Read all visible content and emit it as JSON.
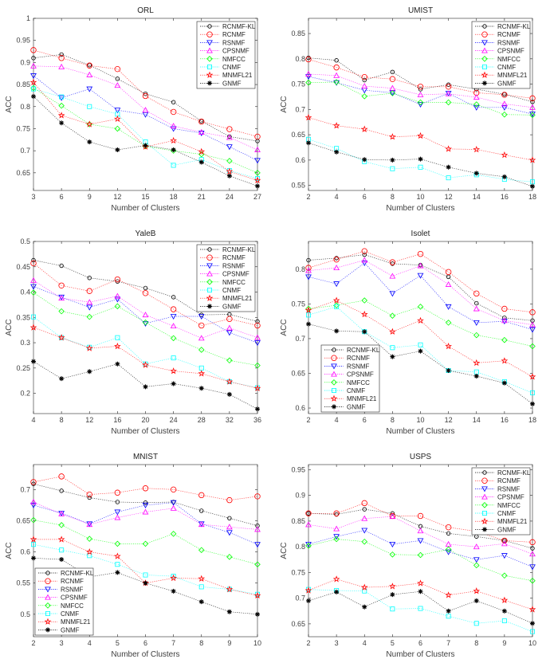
{
  "legend_labels": [
    "RCNMF-KL",
    "RCNMF",
    "RSNMF",
    "CPSNMF",
    "NMFCC",
    "CNMF",
    "MNMFL21",
    "GNMF"
  ],
  "series_styles": [
    {
      "color": "#000000",
      "marker": "small-circle"
    },
    {
      "color": "#ff0000",
      "marker": "circle"
    },
    {
      "color": "#0000ff",
      "marker": "triangle-down"
    },
    {
      "color": "#ff00ff",
      "marker": "triangle-up"
    },
    {
      "color": "#00ff00",
      "marker": "diamond"
    },
    {
      "color": "#00ffff",
      "marker": "square"
    },
    {
      "color": "#ff0000",
      "marker": "pentagram"
    },
    {
      "color": "#000000",
      "marker": "asterisk"
    }
  ],
  "chart_data": [
    {
      "type": "line",
      "title": "ORL",
      "xlabel": "Number of Clusters",
      "ylabel": "ACC",
      "x": [
        3,
        6,
        9,
        12,
        15,
        18,
        21,
        24,
        27
      ],
      "xlim": [
        3,
        27
      ],
      "ylim": [
        0.61,
        1
      ],
      "yticks": [
        "0.65",
        "0.7",
        "0.75",
        "0.8",
        "0.85",
        "0.9",
        "0.95",
        "1"
      ],
      "xticks": [
        "3",
        "6",
        "9",
        "12",
        "15",
        "18",
        "21",
        "24",
        "27"
      ],
      "legend": "top-right",
      "grid": false,
      "series": [
        {
          "name": "RCNMF-KL",
          "values": [
            0.91,
            0.918,
            0.894,
            0.863,
            0.829,
            0.81,
            0.767,
            0.732,
            0.722
          ]
        },
        {
          "name": "RCNMF",
          "values": [
            0.928,
            0.91,
            0.893,
            0.885,
            0.824,
            0.788,
            0.766,
            0.749,
            0.732
          ]
        },
        {
          "name": "RSNMF",
          "values": [
            0.87,
            0.82,
            0.84,
            0.792,
            0.782,
            0.75,
            0.74,
            0.709,
            0.678
          ]
        },
        {
          "name": "CPSNMF",
          "values": [
            0.892,
            0.89,
            0.872,
            0.848,
            0.792,
            0.756,
            0.742,
            0.73,
            0.702
          ]
        },
        {
          "name": "NMFCC",
          "values": [
            0.842,
            0.802,
            0.76,
            0.75,
            0.71,
            0.7,
            0.692,
            0.677,
            0.65
          ]
        },
        {
          "name": "CNMF",
          "values": [
            0.84,
            0.822,
            0.8,
            0.783,
            0.72,
            0.667,
            0.68,
            0.655,
            0.637
          ]
        },
        {
          "name": "MNMFL21",
          "values": [
            0.855,
            0.78,
            0.76,
            0.772,
            0.709,
            0.723,
            0.698,
            0.653,
            0.633
          ]
        },
        {
          "name": "GNMF",
          "values": [
            0.823,
            0.763,
            0.72,
            0.702,
            0.712,
            0.702,
            0.674,
            0.643,
            0.62
          ]
        }
      ]
    },
    {
      "type": "line",
      "title": "UMIST",
      "xlabel": "Number of Clusters",
      "ylabel": "ACC",
      "x": [
        2,
        4,
        6,
        8,
        10,
        12,
        14,
        16,
        18
      ],
      "xlim": [
        2,
        18
      ],
      "ylim": [
        0.54,
        0.88
      ],
      "yticks": [
        "0.55",
        "0.6",
        "0.65",
        "0.7",
        "0.75",
        "0.8",
        "0.85"
      ],
      "xticks": [
        "2",
        "4",
        "6",
        "8",
        "10",
        "12",
        "14",
        "16",
        "18"
      ],
      "legend": "top-right",
      "grid": false,
      "series": [
        {
          "name": "RCNMF-KL",
          "values": [
            0.802,
            0.797,
            0.758,
            0.774,
            0.74,
            0.749,
            0.74,
            0.73,
            0.715
          ]
        },
        {
          "name": "RCNMF",
          "values": [
            0.799,
            0.783,
            0.764,
            0.76,
            0.745,
            0.745,
            0.733,
            0.729,
            0.722
          ]
        },
        {
          "name": "RSNMF",
          "values": [
            0.765,
            0.753,
            0.738,
            0.733,
            0.71,
            0.732,
            0.704,
            0.704,
            0.691
          ]
        },
        {
          "name": "CPSNMF",
          "values": [
            0.77,
            0.767,
            0.746,
            0.742,
            0.729,
            0.731,
            0.724,
            0.711,
            0.704
          ]
        },
        {
          "name": "NMFCC",
          "values": [
            0.753,
            0.754,
            0.726,
            0.732,
            0.714,
            0.714,
            0.71,
            0.69,
            0.689
          ]
        },
        {
          "name": "CNMF",
          "values": [
            0.641,
            0.623,
            0.597,
            0.583,
            0.586,
            0.565,
            0.571,
            0.562,
            0.557
          ]
        },
        {
          "name": "MNMFL21",
          "values": [
            0.684,
            0.668,
            0.661,
            0.646,
            0.648,
            0.622,
            0.621,
            0.61,
            0.6
          ]
        },
        {
          "name": "GNMF",
          "values": [
            0.634,
            0.616,
            0.601,
            0.6,
            0.602,
            0.586,
            0.574,
            0.567,
            0.548
          ]
        }
      ]
    },
    {
      "type": "line",
      "title": "YaleB",
      "xlabel": "Number of Clusters",
      "ylabel": "ACC",
      "x": [
        4,
        8,
        12,
        16,
        20,
        24,
        28,
        32,
        36
      ],
      "xlim": [
        4,
        36
      ],
      "ylim": [
        0.16,
        0.5
      ],
      "yticks": [
        "0.2",
        "0.25",
        "0.3",
        "0.35",
        "0.4",
        "0.45",
        "0.5"
      ],
      "xticks": [
        "4",
        "8",
        "12",
        "16",
        "20",
        "24",
        "28",
        "32",
        "36"
      ],
      "legend": "top-right",
      "grid": false,
      "series": [
        {
          "name": "RCNMF-KL",
          "values": [
            0.463,
            0.452,
            0.428,
            0.421,
            0.408,
            0.39,
            0.355,
            0.356,
            0.342
          ]
        },
        {
          "name": "RCNMF",
          "values": [
            0.457,
            0.413,
            0.402,
            0.425,
            0.398,
            0.366,
            0.334,
            0.347,
            0.334
          ]
        },
        {
          "name": "RSNMF",
          "values": [
            0.411,
            0.39,
            0.37,
            0.386,
            0.338,
            0.352,
            0.352,
            0.32,
            0.3
          ]
        },
        {
          "name": "CPSNMF",
          "values": [
            0.423,
            0.388,
            0.38,
            0.392,
            0.355,
            0.333,
            0.309,
            0.329,
            0.31
          ]
        },
        {
          "name": "NMFCC",
          "values": [
            0.399,
            0.362,
            0.351,
            0.372,
            0.34,
            0.309,
            0.286,
            0.265,
            0.255
          ]
        },
        {
          "name": "CNMF",
          "values": [
            0.351,
            0.31,
            0.291,
            0.31,
            0.258,
            0.27,
            0.25,
            0.223,
            0.211
          ]
        },
        {
          "name": "MNMFL21",
          "values": [
            0.33,
            0.31,
            0.289,
            0.293,
            0.256,
            0.244,
            0.239,
            0.223,
            0.21
          ]
        },
        {
          "name": "GNMF",
          "values": [
            0.263,
            0.229,
            0.243,
            0.258,
            0.213,
            0.219,
            0.21,
            0.198,
            0.169
          ]
        }
      ]
    },
    {
      "type": "line",
      "title": "Isolet",
      "xlabel": "Number of Clusters",
      "ylabel": "ACC",
      "x": [
        2,
        4,
        6,
        8,
        10,
        12,
        14,
        16,
        18
      ],
      "xlim": [
        2,
        18
      ],
      "ylim": [
        0.592,
        0.84
      ],
      "yticks": [
        "0.6",
        "0.65",
        "0.7",
        "0.75",
        "0.8"
      ],
      "xticks": [
        "2",
        "4",
        "6",
        "8",
        "10",
        "12",
        "14",
        "16",
        "18"
      ],
      "legend": "bottom-left",
      "grid": false,
      "series": [
        {
          "name": "RCNMF-KL",
          "values": [
            0.813,
            0.816,
            0.821,
            0.808,
            0.806,
            0.789,
            0.751,
            0.73,
            0.726
          ]
        },
        {
          "name": "RCNMF",
          "values": [
            0.802,
            0.814,
            0.826,
            0.81,
            0.822,
            0.796,
            0.765,
            0.743,
            0.738
          ]
        },
        {
          "name": "RSNMF",
          "values": [
            0.789,
            0.779,
            0.809,
            0.765,
            0.791,
            0.746,
            0.723,
            0.725,
            0.713
          ]
        },
        {
          "name": "CPSNMF",
          "values": [
            0.798,
            0.802,
            0.813,
            0.79,
            0.805,
            0.778,
            0.743,
            0.726,
            0.72
          ]
        },
        {
          "name": "NMFCC",
          "values": [
            0.743,
            0.748,
            0.755,
            0.733,
            0.746,
            0.723,
            0.705,
            0.698,
            0.689
          ]
        },
        {
          "name": "CNMF",
          "values": [
            0.734,
            0.746,
            0.71,
            0.687,
            0.691,
            0.654,
            0.652,
            0.638,
            0.622
          ]
        },
        {
          "name": "MNMFL21",
          "values": [
            0.741,
            0.755,
            0.735,
            0.71,
            0.726,
            0.689,
            0.665,
            0.668,
            0.645
          ]
        },
        {
          "name": "GNMF",
          "values": [
            0.721,
            0.711,
            0.71,
            0.674,
            0.682,
            0.654,
            0.646,
            0.636,
            0.606
          ]
        }
      ]
    },
    {
      "type": "line",
      "title": "MNIST",
      "xlabel": "Number of Clusters",
      "ylabel": "ACC",
      "x": [
        2,
        3,
        4,
        5,
        6,
        7,
        8,
        9,
        10
      ],
      "xlim": [
        2,
        10
      ],
      "ylim": [
        0.464,
        0.74
      ],
      "yticks": [
        "0.5",
        "0.55",
        "0.6",
        "0.65",
        "0.7"
      ],
      "xticks": [
        "2",
        "3",
        "4",
        "5",
        "6",
        "7",
        "8",
        "9",
        "10"
      ],
      "legend": "bottom-left",
      "grid": false,
      "series": [
        {
          "name": "RCNMF-KL",
          "values": [
            0.709,
            0.698,
            0.687,
            0.68,
            0.679,
            0.68,
            0.666,
            0.654,
            0.642
          ]
        },
        {
          "name": "RCNMF",
          "values": [
            0.712,
            0.721,
            0.692,
            0.695,
            0.702,
            0.7,
            0.691,
            0.683,
            0.689
          ]
        },
        {
          "name": "RSNMF",
          "values": [
            0.675,
            0.662,
            0.645,
            0.664,
            0.675,
            0.679,
            0.645,
            0.631,
            0.612
          ]
        },
        {
          "name": "CPSNMF",
          "values": [
            0.68,
            0.661,
            0.644,
            0.655,
            0.664,
            0.67,
            0.644,
            0.64,
            0.636
          ]
        },
        {
          "name": "NMFCC",
          "values": [
            0.651,
            0.643,
            0.621,
            0.613,
            0.613,
            0.629,
            0.603,
            0.592,
            0.58
          ]
        },
        {
          "name": "CNMF",
          "values": [
            0.612,
            0.603,
            0.594,
            0.58,
            0.563,
            0.561,
            0.544,
            0.54,
            0.532
          ]
        },
        {
          "name": "MNMFL21",
          "values": [
            0.62,
            0.62,
            0.6,
            0.593,
            0.55,
            0.558,
            0.557,
            0.54,
            0.53
          ]
        },
        {
          "name": "GNMF",
          "values": [
            0.59,
            0.588,
            0.56,
            0.567,
            0.55,
            0.537,
            0.52,
            0.504,
            0.5
          ]
        }
      ]
    },
    {
      "type": "line",
      "title": "USPS",
      "xlabel": "Number of Clusters",
      "ylabel": "ACC",
      "x": [
        2,
        3,
        4,
        5,
        6,
        7,
        8,
        9,
        10
      ],
      "xlim": [
        2,
        10
      ],
      "ylim": [
        0.625,
        0.96
      ],
      "yticks": [
        "0.65",
        "0.7",
        "0.75",
        "0.8",
        "0.85",
        "0.9",
        "0.95"
      ],
      "xticks": [
        "2",
        "3",
        "4",
        "5",
        "6",
        "7",
        "8",
        "9",
        "10"
      ],
      "legend": "top-right",
      "grid": false,
      "series": [
        {
          "name": "RCNMF-KL",
          "values": [
            0.865,
            0.863,
            0.873,
            0.865,
            0.84,
            0.826,
            0.82,
            0.812,
            0.797
          ]
        },
        {
          "name": "RCNMF",
          "values": [
            0.865,
            0.865,
            0.885,
            0.86,
            0.86,
            0.838,
            0.83,
            0.812,
            0.809
          ]
        },
        {
          "name": "RSNMF",
          "values": [
            0.805,
            0.82,
            0.832,
            0.805,
            0.812,
            0.79,
            0.775,
            0.783,
            0.761
          ]
        },
        {
          "name": "CPSNMF",
          "values": [
            0.843,
            0.835,
            0.855,
            0.859,
            0.831,
            0.805,
            0.8,
            0.806,
            0.786
          ]
        },
        {
          "name": "NMFCC",
          "values": [
            0.802,
            0.815,
            0.81,
            0.785,
            0.784,
            0.795,
            0.764,
            0.744,
            0.734
          ]
        },
        {
          "name": "CNMF",
          "values": [
            0.717,
            0.715,
            0.714,
            0.679,
            0.68,
            0.665,
            0.651,
            0.656,
            0.635
          ]
        },
        {
          "name": "MNMFL21",
          "values": [
            0.715,
            0.737,
            0.721,
            0.723,
            0.729,
            0.706,
            0.714,
            0.696,
            0.678
          ]
        },
        {
          "name": "GNMF",
          "values": [
            0.695,
            0.712,
            0.683,
            0.707,
            0.713,
            0.675,
            0.695,
            0.675,
            0.651
          ]
        }
      ]
    }
  ]
}
